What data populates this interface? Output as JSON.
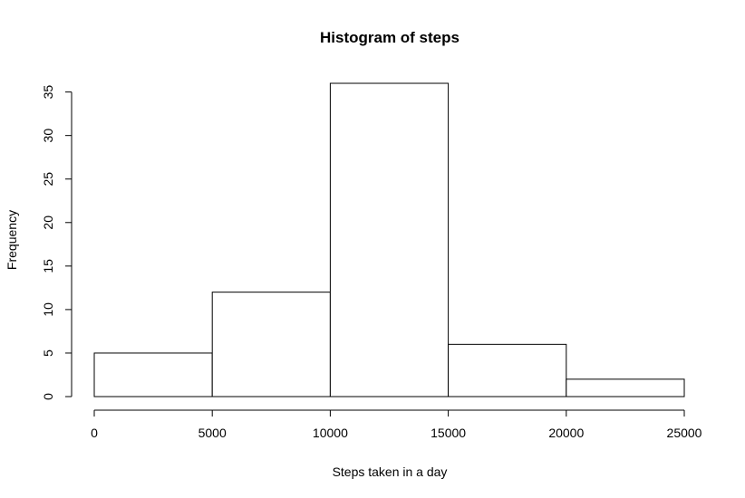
{
  "chart_data": {
    "type": "bar",
    "title": "Histogram of steps",
    "xlabel": "Steps taken in a day",
    "ylabel": "Frequency",
    "bins": [
      {
        "from": 0,
        "to": 5000,
        "count": 5
      },
      {
        "from": 5000,
        "to": 10000,
        "count": 12
      },
      {
        "from": 10000,
        "to": 15000,
        "count": 36
      },
      {
        "from": 15000,
        "to": 20000,
        "count": 6
      },
      {
        "from": 20000,
        "to": 25000,
        "count": 2
      }
    ],
    "xlim": [
      0,
      25000
    ],
    "ylim": [
      0,
      36
    ],
    "x_ticks": [
      0,
      5000,
      10000,
      15000,
      20000,
      25000
    ],
    "y_ticks": [
      0,
      5,
      10,
      15,
      20,
      25,
      30,
      35
    ],
    "grid": false,
    "colors": {
      "bar_fill": "#ffffff",
      "bar_stroke": "#000000"
    }
  }
}
